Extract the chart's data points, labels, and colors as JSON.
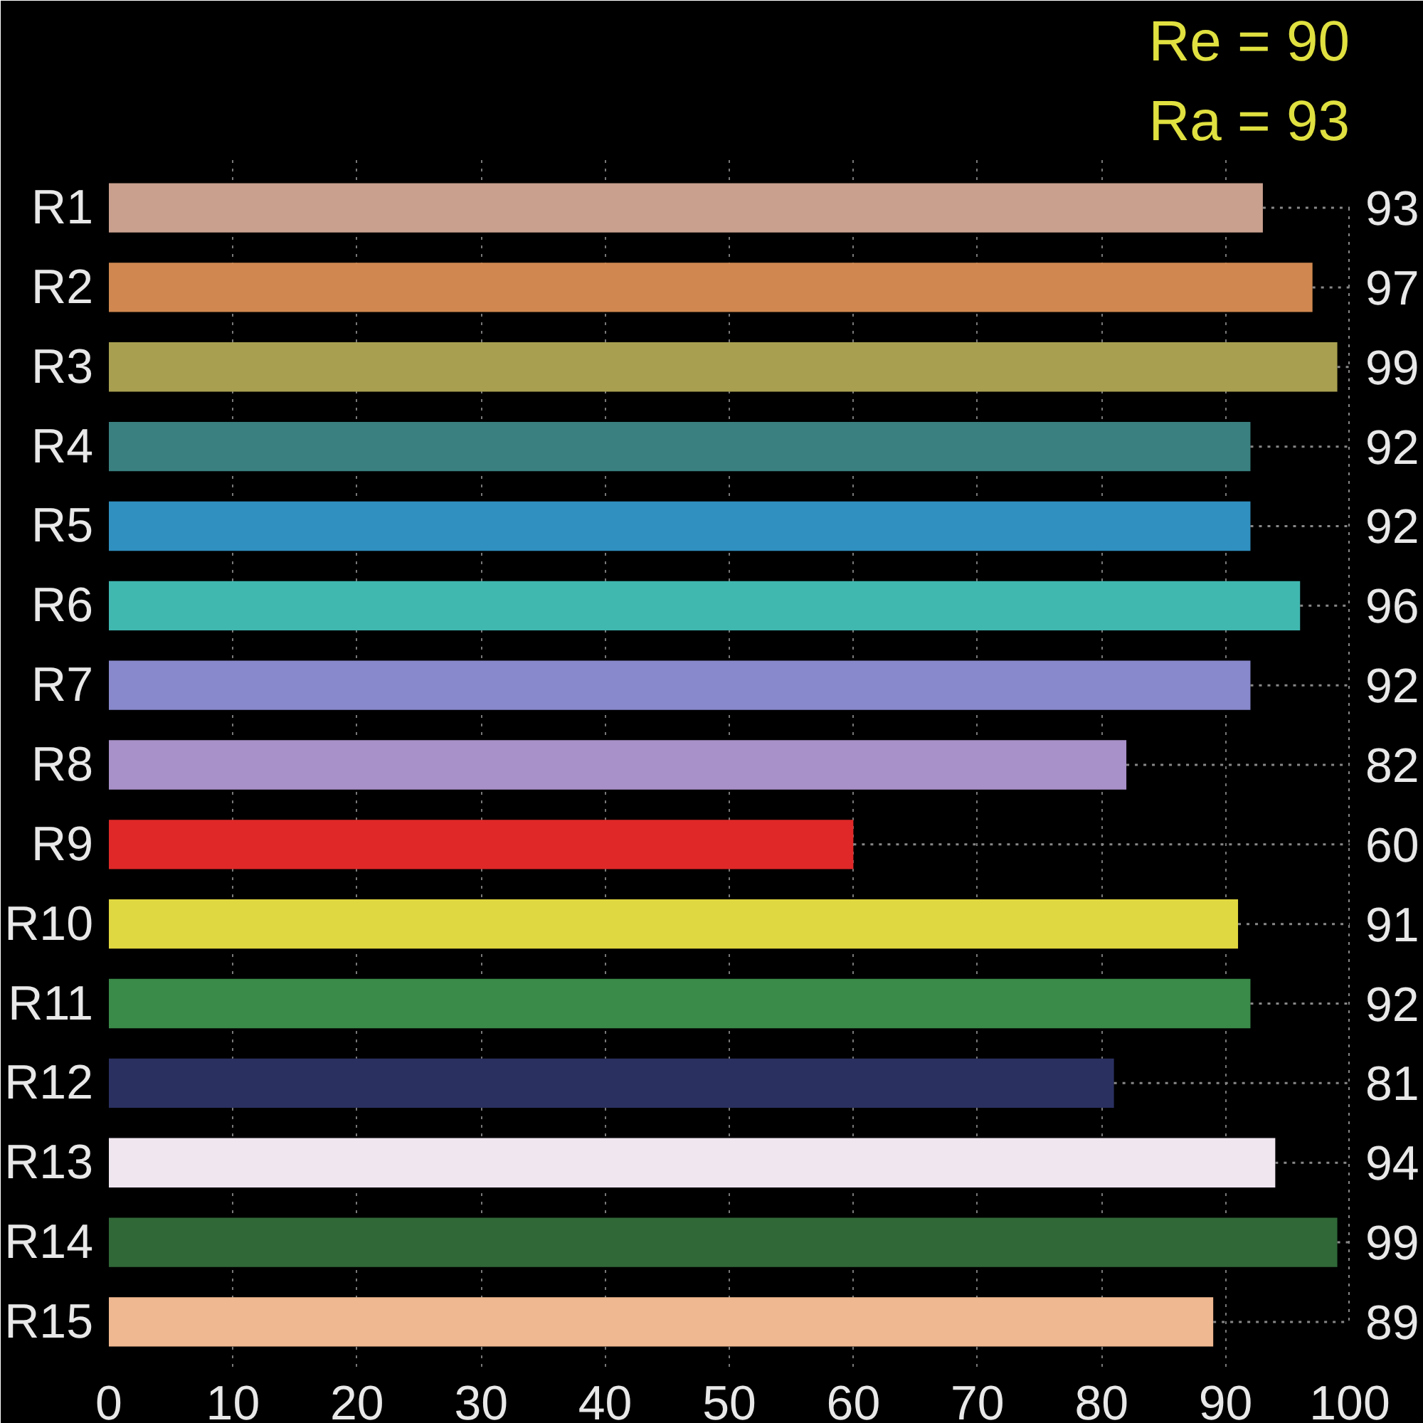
{
  "chart_data": {
    "type": "bar",
    "orientation": "horizontal",
    "categories": [
      "R1",
      "R2",
      "R3",
      "R4",
      "R5",
      "R6",
      "R7",
      "R8",
      "R9",
      "R10",
      "R11",
      "R12",
      "R13",
      "R14",
      "R15"
    ],
    "values": [
      93,
      97,
      99,
      92,
      92,
      96,
      92,
      82,
      60,
      91,
      92,
      81,
      94,
      99,
      89
    ],
    "colors": [
      "#c9a08e",
      "#d08850",
      "#a8a050",
      "#3a8080",
      "#3090c0",
      "#40b8b0",
      "#8888cc",
      "#a890c8",
      "#e02828",
      "#e0d840",
      "#3a8a4a",
      "#2a3060",
      "#f0e6f0",
      "#306838",
      "#f0b890"
    ],
    "xlim": [
      0,
      100
    ],
    "xticks": [
      0,
      10,
      20,
      30,
      40,
      50,
      60,
      70,
      80,
      90,
      100
    ],
    "grid": "x",
    "data_labels": true,
    "annotations": [
      "Re = 90",
      "Ra = 93"
    ]
  }
}
